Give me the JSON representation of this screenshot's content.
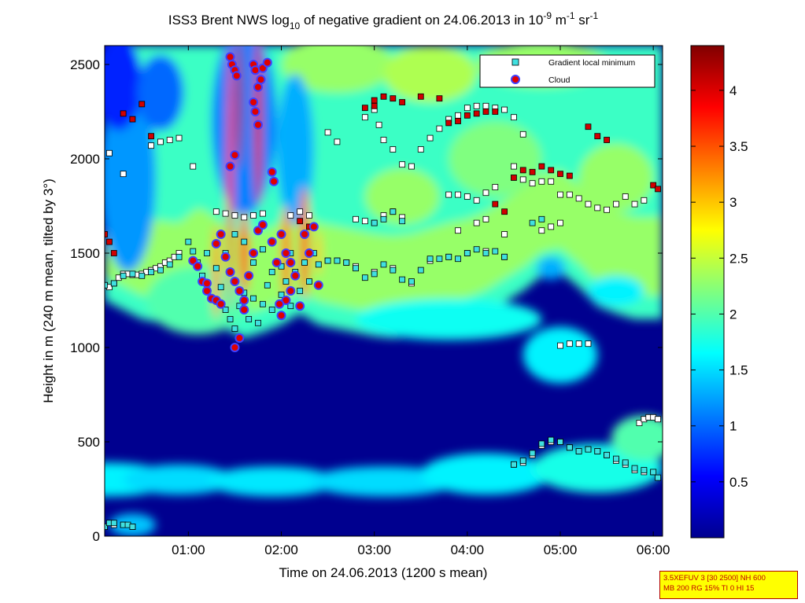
{
  "chart_data": {
    "type": "heatmap",
    "title_parts": {
      "prefix": "ISS3 Brent NWS log",
      "sub": "10",
      "mid": " of negative gradient on 24.06.2013 in 10",
      "sup1": "-9",
      "unit1": " m",
      "sup2": "-1",
      "unit2": " sr",
      "sup3": "-1"
    },
    "xlabel": "Time on 24.06.2013 (1200 s mean)",
    "ylabel": "Height in m (240 m mean, tilted by 3°)",
    "xlim_hours": [
      0.1,
      6.1
    ],
    "ylim": [
      0,
      2600
    ],
    "xticks": [
      {
        "label": "01:00",
        "hour": 1
      },
      {
        "label": "02:00",
        "hour": 2
      },
      {
        "label": "03:00",
        "hour": 3
      },
      {
        "label": "04:00",
        "hour": 4
      },
      {
        "label": "05:00",
        "hour": 5
      },
      {
        "label": "06:00",
        "hour": 6
      }
    ],
    "yticks": [
      0,
      500,
      1000,
      1500,
      2000,
      2500
    ],
    "colorbar": {
      "range": [
        0,
        4.4
      ],
      "ticks": [
        "0.5",
        "1",
        "1.5",
        "2",
        "2.5",
        "3",
        "3.5",
        "4"
      ],
      "colormap": "jet"
    },
    "legend": {
      "position": "top-right",
      "entries": [
        {
          "label": "Gradient local minimum",
          "marker": "square",
          "color": "#40e0e0"
        },
        {
          "label": "Cloud",
          "marker": "circle",
          "color": "#e00000",
          "edge": "#4040ff"
        }
      ]
    },
    "background_field": {
      "blobs": [
        {
          "h": 0.15,
          "y": 300,
          "rx": 0.7,
          "ry": 90,
          "v": 1.6
        },
        {
          "h": 0.9,
          "y": 300,
          "rx": 0.6,
          "ry": 80,
          "v": 1.5
        },
        {
          "h": 1.9,
          "y": 290,
          "rx": 0.7,
          "ry": 80,
          "v": 1.55
        },
        {
          "h": 3.1,
          "y": 290,
          "rx": 0.8,
          "ry": 80,
          "v": 1.5
        },
        {
          "h": 4.2,
          "y": 330,
          "rx": 0.7,
          "ry": 110,
          "v": 1.6
        },
        {
          "h": 5.4,
          "y": 360,
          "rx": 0.7,
          "ry": 130,
          "v": 1.75
        },
        {
          "h": 5.9,
          "y": 520,
          "rx": 0.35,
          "ry": 120,
          "v": 2.0
        },
        {
          "h": 0.4,
          "y": 60,
          "rx": 0.25,
          "ry": 60,
          "v": 1.4
        },
        {
          "h": 5.0,
          "y": 960,
          "rx": 0.4,
          "ry": 150,
          "v": 1.6
        },
        {
          "h": 3.8,
          "y": 1150,
          "rx": 1.0,
          "ry": 110,
          "v": 1.7
        },
        {
          "h": 1.1,
          "y": 1250,
          "rx": 0.55,
          "ry": 180,
          "v": 2.0
        }
      ]
    },
    "gradient_local_minimum": [
      [
        0.1,
        1330
      ],
      [
        0.2,
        1340
      ],
      [
        0.3,
        1380
      ],
      [
        0.4,
        1390
      ],
      [
        0.5,
        1380
      ],
      [
        0.6,
        1400
      ],
      [
        0.7,
        1410
      ],
      [
        0.8,
        1440
      ],
      [
        0.9,
        1480
      ],
      [
        1.0,
        1560
      ],
      [
        1.05,
        1510
      ],
      [
        1.1,
        1450
      ],
      [
        1.15,
        1380
      ],
      [
        1.2,
        1300
      ],
      [
        1.3,
        1250
      ],
      [
        1.35,
        1320
      ],
      [
        1.4,
        1200
      ],
      [
        1.45,
        1150
      ],
      [
        1.5,
        1100
      ],
      [
        1.55,
        1220
      ],
      [
        1.6,
        1290
      ],
      [
        1.65,
        1150
      ],
      [
        1.7,
        1260
      ],
      [
        1.75,
        1130
      ],
      [
        1.8,
        1230
      ],
      [
        1.85,
        1330
      ],
      [
        1.9,
        1200
      ],
      [
        1.95,
        1450
      ],
      [
        2.0,
        1280
      ],
      [
        2.05,
        1350
      ],
      [
        2.1,
        1220
      ],
      [
        2.15,
        1400
      ],
      [
        2.2,
        1300
      ],
      [
        2.25,
        1450
      ],
      [
        2.3,
        1350
      ],
      [
        2.35,
        1500
      ],
      [
        2.4,
        1440
      ],
      [
        2.5,
        1460
      ],
      [
        2.6,
        1460
      ],
      [
        2.7,
        1450
      ],
      [
        2.8,
        1420
      ],
      [
        2.9,
        1370
      ],
      [
        3.0,
        1390
      ],
      [
        3.1,
        1440
      ],
      [
        3.2,
        1410
      ],
      [
        3.3,
        1360
      ],
      [
        3.4,
        1350
      ],
      [
        3.5,
        1410
      ],
      [
        3.6,
        1470
      ],
      [
        3.7,
        1470
      ],
      [
        3.8,
        1480
      ],
      [
        3.9,
        1470
      ],
      [
        4.0,
        1500
      ],
      [
        4.1,
        1520
      ],
      [
        4.2,
        1500
      ],
      [
        4.3,
        1510
      ],
      [
        4.4,
        1480
      ],
      [
        1.4,
        1500
      ],
      [
        1.5,
        1600
      ],
      [
        1.6,
        1560
      ],
      [
        1.7,
        1450
      ],
      [
        1.3,
        1420
      ],
      [
        1.2,
        1500
      ],
      [
        1.8,
        1520
      ],
      [
        1.9,
        1400
      ],
      [
        2.0,
        1430
      ],
      [
        2.1,
        1500
      ],
      [
        3.3,
        1670
      ],
      [
        3.2,
        1720
      ],
      [
        3.1,
        1680
      ],
      [
        3.0,
        1660
      ],
      [
        4.7,
        1660
      ],
      [
        4.8,
        1680
      ],
      [
        4.5,
        380
      ],
      [
        4.6,
        400
      ],
      [
        4.7,
        440
      ],
      [
        4.8,
        490
      ],
      [
        4.9,
        510
      ],
      [
        5.0,
        500
      ],
      [
        5.1,
        470
      ],
      [
        5.2,
        450
      ],
      [
        5.3,
        460
      ],
      [
        5.4,
        450
      ],
      [
        5.5,
        430
      ],
      [
        5.6,
        410
      ],
      [
        5.7,
        390
      ],
      [
        5.8,
        360
      ],
      [
        5.9,
        350
      ],
      [
        6.0,
        340
      ],
      [
        6.05,
        310
      ],
      [
        0.1,
        50
      ],
      [
        0.15,
        70
      ],
      [
        0.2,
        70
      ],
      [
        0.3,
        60
      ],
      [
        0.35,
        60
      ],
      [
        0.4,
        50
      ]
    ],
    "boundary_squares": [
      [
        0.1,
        1330
      ],
      [
        0.15,
        1320
      ],
      [
        0.2,
        1340
      ],
      [
        0.25,
        1370
      ],
      [
        0.3,
        1390
      ],
      [
        0.35,
        1390
      ],
      [
        0.4,
        1385
      ],
      [
        0.45,
        1385
      ],
      [
        0.5,
        1390
      ],
      [
        0.55,
        1400
      ],
      [
        0.6,
        1410
      ],
      [
        0.65,
        1420
      ],
      [
        0.7,
        1430
      ],
      [
        0.75,
        1450
      ],
      [
        0.8,
        1460
      ],
      [
        0.85,
        1480
      ],
      [
        0.9,
        1500
      ],
      [
        2.5,
        1460
      ],
      [
        2.6,
        1460
      ],
      [
        2.7,
        1450
      ],
      [
        2.8,
        1430
      ],
      [
        3.0,
        1400
      ],
      [
        3.2,
        1420
      ],
      [
        3.4,
        1340
      ],
      [
        3.6,
        1460
      ],
      [
        3.8,
        1480
      ],
      [
        4.0,
        1500
      ],
      [
        4.2,
        1510
      ],
      [
        4.4,
        1480
      ],
      [
        0.15,
        2030
      ],
      [
        0.3,
        1920
      ],
      [
        0.6,
        2070
      ],
      [
        0.7,
        2090
      ],
      [
        0.8,
        2100
      ],
      [
        0.9,
        2110
      ],
      [
        1.05,
        1960
      ],
      [
        1.3,
        1720
      ],
      [
        1.4,
        1710
      ],
      [
        1.5,
        1700
      ],
      [
        1.6,
        1690
      ],
      [
        1.7,
        1700
      ],
      [
        1.8,
        1710
      ],
      [
        2.1,
        1700
      ],
      [
        2.2,
        1720
      ],
      [
        2.3,
        1700
      ],
      [
        2.5,
        2140
      ],
      [
        2.6,
        2090
      ],
      [
        2.9,
        2220
      ],
      [
        3.0,
        2260
      ],
      [
        3.05,
        2180
      ],
      [
        3.1,
        2100
      ],
      [
        3.2,
        2050
      ],
      [
        3.3,
        1970
      ],
      [
        3.4,
        1960
      ],
      [
        3.5,
        2050
      ],
      [
        3.6,
        2110
      ],
      [
        3.7,
        2160
      ],
      [
        3.8,
        2210
      ],
      [
        3.9,
        2230
      ],
      [
        4.0,
        2270
      ],
      [
        4.1,
        2280
      ],
      [
        4.2,
        2280
      ],
      [
        4.3,
        2270
      ],
      [
        4.4,
        2260
      ],
      [
        4.5,
        2220
      ],
      [
        4.6,
        2130
      ],
      [
        3.8,
        1810
      ],
      [
        3.9,
        1810
      ],
      [
        4.0,
        1800
      ],
      [
        4.1,
        1780
      ],
      [
        4.2,
        1820
      ],
      [
        4.3,
        1850
      ],
      [
        4.5,
        1960
      ],
      [
        4.6,
        1890
      ],
      [
        4.7,
        1870
      ],
      [
        4.8,
        1880
      ],
      [
        4.9,
        1880
      ],
      [
        5.0,
        1810
      ],
      [
        5.1,
        1810
      ],
      [
        5.2,
        1790
      ],
      [
        5.3,
        1760
      ],
      [
        5.4,
        1740
      ],
      [
        5.5,
        1730
      ],
      [
        5.6,
        1760
      ],
      [
        5.7,
        1800
      ],
      [
        5.8,
        1760
      ],
      [
        5.9,
        1780
      ],
      [
        2.8,
        1680
      ],
      [
        2.9,
        1670
      ],
      [
        3.0,
        1660
      ],
      [
        3.1,
        1700
      ],
      [
        3.2,
        1720
      ],
      [
        3.3,
        1690
      ],
      [
        3.9,
        1620
      ],
      [
        4.1,
        1660
      ],
      [
        4.2,
        1680
      ],
      [
        4.4,
        1600
      ],
      [
        4.8,
        1620
      ],
      [
        4.9,
        1640
      ],
      [
        5.0,
        1660
      ],
      [
        5.0,
        1010
      ],
      [
        5.1,
        1020
      ],
      [
        5.2,
        1020
      ],
      [
        5.3,
        1020
      ],
      [
        4.5,
        380
      ],
      [
        4.6,
        390
      ],
      [
        4.7,
        430
      ],
      [
        4.8,
        480
      ],
      [
        4.9,
        500
      ],
      [
        5.0,
        500
      ],
      [
        5.1,
        470
      ],
      [
        5.2,
        450
      ],
      [
        5.3,
        460
      ],
      [
        5.4,
        450
      ],
      [
        5.5,
        430
      ],
      [
        5.6,
        400
      ],
      [
        5.7,
        380
      ],
      [
        5.8,
        350
      ],
      [
        5.9,
        340
      ],
      [
        6.0,
        340
      ],
      [
        5.85,
        600
      ],
      [
        5.9,
        620
      ],
      [
        5.95,
        630
      ],
      [
        6.0,
        630
      ],
      [
        6.05,
        620
      ],
      [
        0.1,
        50
      ],
      [
        0.2,
        60
      ],
      [
        0.3,
        60
      ],
      [
        0.4,
        50
      ]
    ],
    "red_squares": [
      [
        0.1,
        1600
      ],
      [
        0.15,
        1560
      ],
      [
        0.2,
        1500
      ],
      [
        0.3,
        2240
      ],
      [
        0.4,
        2210
      ],
      [
        0.5,
        2290
      ],
      [
        0.6,
        2120
      ],
      [
        3.0,
        2280
      ],
      [
        3.1,
        2330
      ],
      [
        3.2,
        2320
      ],
      [
        3.3,
        2300
      ],
      [
        3.5,
        2330
      ],
      [
        3.7,
        2320
      ],
      [
        3.8,
        2190
      ],
      [
        3.9,
        2200
      ],
      [
        4.0,
        2230
      ],
      [
        4.1,
        2240
      ],
      [
        4.2,
        2250
      ],
      [
        4.3,
        2250
      ],
      [
        4.3,
        1760
      ],
      [
        4.4,
        1720
      ],
      [
        4.5,
        1900
      ],
      [
        4.6,
        1940
      ],
      [
        4.7,
        1930
      ],
      [
        4.8,
        1960
      ],
      [
        4.9,
        1940
      ],
      [
        5.0,
        1920
      ],
      [
        5.1,
        1910
      ],
      [
        5.3,
        2170
      ],
      [
        5.4,
        2120
      ],
      [
        5.5,
        2100
      ],
      [
        6.0,
        1860
      ],
      [
        6.05,
        1840
      ],
      [
        2.9,
        2270
      ],
      [
        3.0,
        2310
      ],
      [
        2.2,
        1670
      ],
      [
        2.3,
        1640
      ]
    ],
    "cloud": [
      [
        1.05,
        1460
      ],
      [
        1.1,
        1430
      ],
      [
        1.15,
        1350
      ],
      [
        1.2,
        1300
      ],
      [
        1.25,
        1260
      ],
      [
        1.3,
        1250
      ],
      [
        1.35,
        1230
      ],
      [
        1.2,
        1340
      ],
      [
        1.45,
        2540
      ],
      [
        1.47,
        2500
      ],
      [
        1.5,
        2470
      ],
      [
        1.52,
        2440
      ],
      [
        1.45,
        1960
      ],
      [
        1.5,
        2020
      ],
      [
        1.7,
        2500
      ],
      [
        1.72,
        2470
      ],
      [
        1.78,
        2420
      ],
      [
        1.8,
        2480
      ],
      [
        1.85,
        2510
      ],
      [
        1.75,
        2380
      ],
      [
        1.7,
        2300
      ],
      [
        1.72,
        2250
      ],
      [
        1.75,
        2180
      ],
      [
        1.9,
        1930
      ],
      [
        1.92,
        1880
      ],
      [
        1.35,
        1600
      ],
      [
        1.3,
        1550
      ],
      [
        1.4,
        1480
      ],
      [
        1.45,
        1400
      ],
      [
        1.5,
        1350
      ],
      [
        1.55,
        1300
      ],
      [
        1.6,
        1250
      ],
      [
        1.5,
        1000
      ],
      [
        1.55,
        1050
      ],
      [
        1.6,
        1200
      ],
      [
        1.65,
        1380
      ],
      [
        1.7,
        1500
      ],
      [
        1.75,
        1620
      ],
      [
        1.8,
        1650
      ],
      [
        1.9,
        1560
      ],
      [
        1.95,
        1450
      ],
      [
        2.0,
        1600
      ],
      [
        2.05,
        1500
      ],
      [
        2.1,
        1450
      ],
      [
        2.15,
        1380
      ],
      [
        2.2,
        1220
      ],
      [
        2.25,
        1600
      ],
      [
        2.3,
        1500
      ],
      [
        2.35,
        1640
      ],
      [
        2.4,
        1330
      ],
      [
        2.0,
        1170
      ],
      [
        2.05,
        1250
      ],
      [
        2.1,
        1300
      ],
      [
        1.98,
        1230
      ]
    ]
  },
  "annotation_box": {
    "line1": "3.5XEFUV 3 [30 2500] NH 600",
    "line2": "MB 200 RG 15% TI 0 HI 15"
  }
}
